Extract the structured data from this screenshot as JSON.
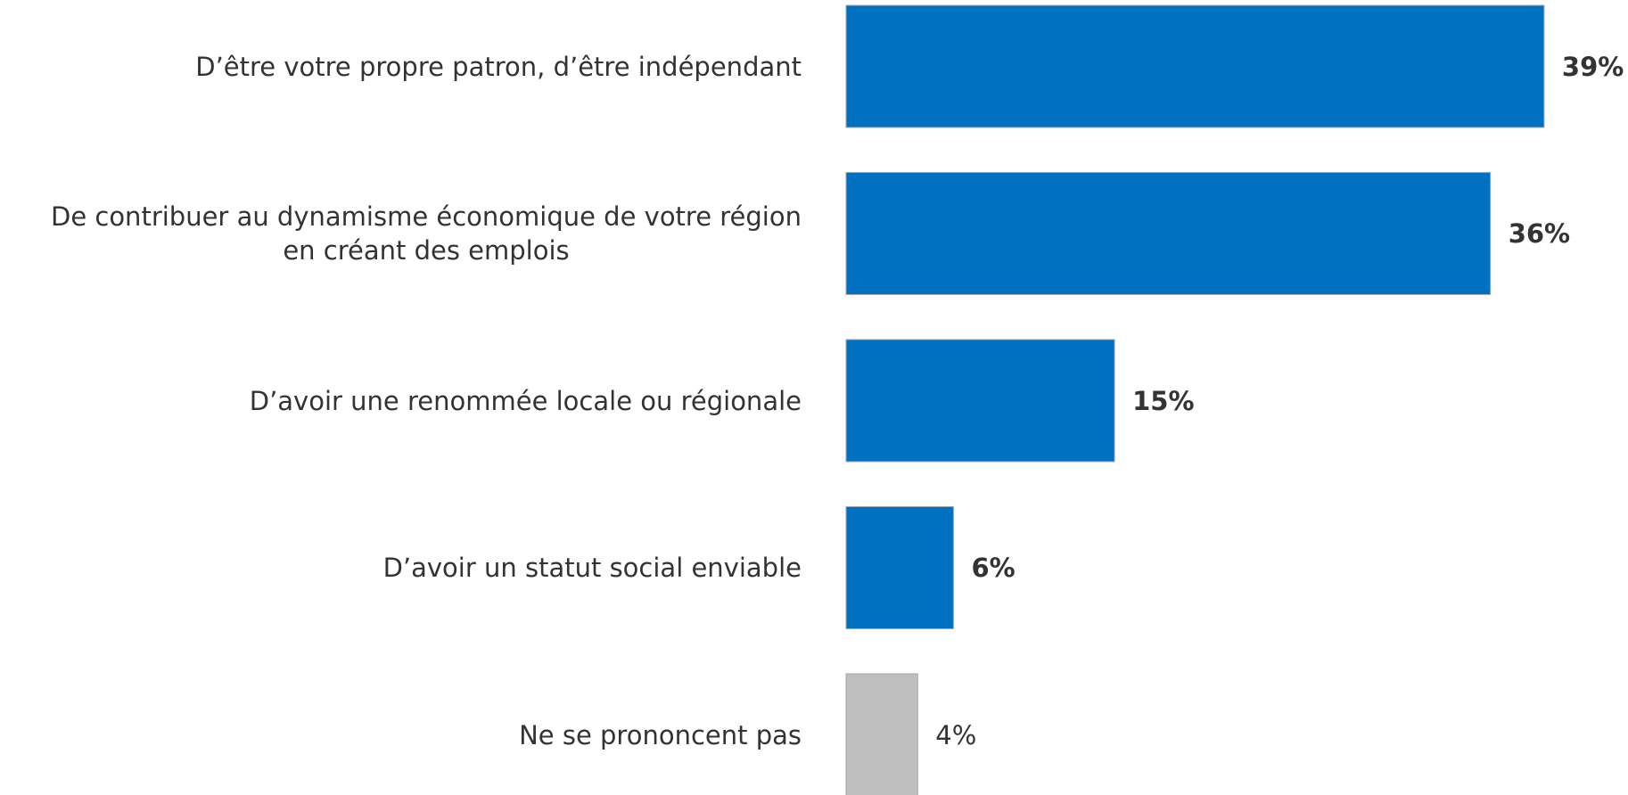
{
  "chart_data": {
    "type": "bar",
    "orientation": "horizontal",
    "categories": [
      "D’être votre propre patron, d’être indépendant",
      "De contribuer au dynamisme économique de votre région\nen créant des emplois",
      "D’avoir une renommée locale ou régionale",
      "D’avoir un statut social enviable",
      "Ne se prononcent pas"
    ],
    "values": [
      39,
      36,
      15,
      6,
      4
    ],
    "value_labels": [
      "39%",
      "36%",
      "15%",
      "6%",
      "4%"
    ],
    "colors": [
      "#0070c0",
      "#0070c0",
      "#0070c0",
      "#0070c0",
      "#bfbfbf"
    ],
    "xlim": [
      0,
      40
    ]
  }
}
